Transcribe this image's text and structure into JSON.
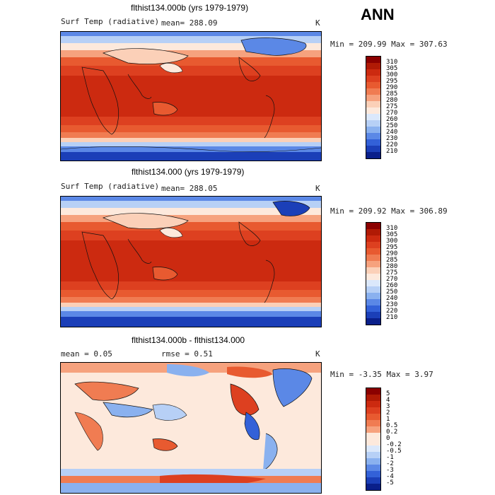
{
  "season": "ANN",
  "panels": [
    {
      "title": "flthist134.000b (yrs 1979-1979)",
      "var_label": "Surf Temp (radiative)",
      "stat_text": "mean= 288.09",
      "units": "K",
      "minmax": "Min = 209.99 Max = 307.63",
      "levels": [
        "310",
        "305",
        "300",
        "295",
        "290",
        "285",
        "280",
        "275",
        "270",
        "260",
        "250",
        "240",
        "230",
        "220",
        "210"
      ],
      "colors": [
        "#8b0000",
        "#b01a05",
        "#cc2a10",
        "#dd4020",
        "#e85a30",
        "#f07c52",
        "#f6a27e",
        "#fbd0b8",
        "#fde9dc",
        "#dbe8fb",
        "#b7d0f6",
        "#8ab1ef",
        "#5b88e6",
        "#3361d8",
        "#1b3fb8",
        "#0a1f8a"
      ]
    },
    {
      "title": "flthist134.000 (yrs 1979-1979)",
      "var_label": "Surf Temp (radiative)",
      "stat_text": "mean= 288.05",
      "units": "K",
      "minmax": "Min = 209.92 Max = 306.89",
      "levels": [
        "310",
        "305",
        "300",
        "295",
        "290",
        "285",
        "280",
        "275",
        "270",
        "260",
        "250",
        "240",
        "230",
        "220",
        "210"
      ],
      "colors": [
        "#8b0000",
        "#b01a05",
        "#cc2a10",
        "#dd4020",
        "#e85a30",
        "#f07c52",
        "#f6a27e",
        "#fbd0b8",
        "#fde9dc",
        "#dbe8fb",
        "#b7d0f6",
        "#8ab1ef",
        "#5b88e6",
        "#3361d8",
        "#1b3fb8",
        "#0a1f8a"
      ]
    },
    {
      "title": "flthist134.000b - flthist134.000",
      "mean_text": "mean =    0.05",
      "rmse_text": "rmse =    0.51",
      "units": "K",
      "minmax": "Min =  -3.35 Max =    3.97",
      "levels": [
        "5",
        "4",
        "3",
        "2",
        "1",
        "0.5",
        "0.2",
        "0",
        "-0.2",
        "-0.5",
        "-1",
        "-2",
        "-3",
        "-4",
        "-5"
      ],
      "colors": [
        "#8b0000",
        "#b01a05",
        "#cc2a10",
        "#dd4020",
        "#e85a30",
        "#f07c52",
        "#f6a27e",
        "#fde9dc",
        "#fde9dc",
        "#dbe8fb",
        "#b7d0f6",
        "#8ab1ef",
        "#5b88e6",
        "#3361d8",
        "#1b3fb8",
        "#0a1f8a"
      ]
    }
  ]
}
